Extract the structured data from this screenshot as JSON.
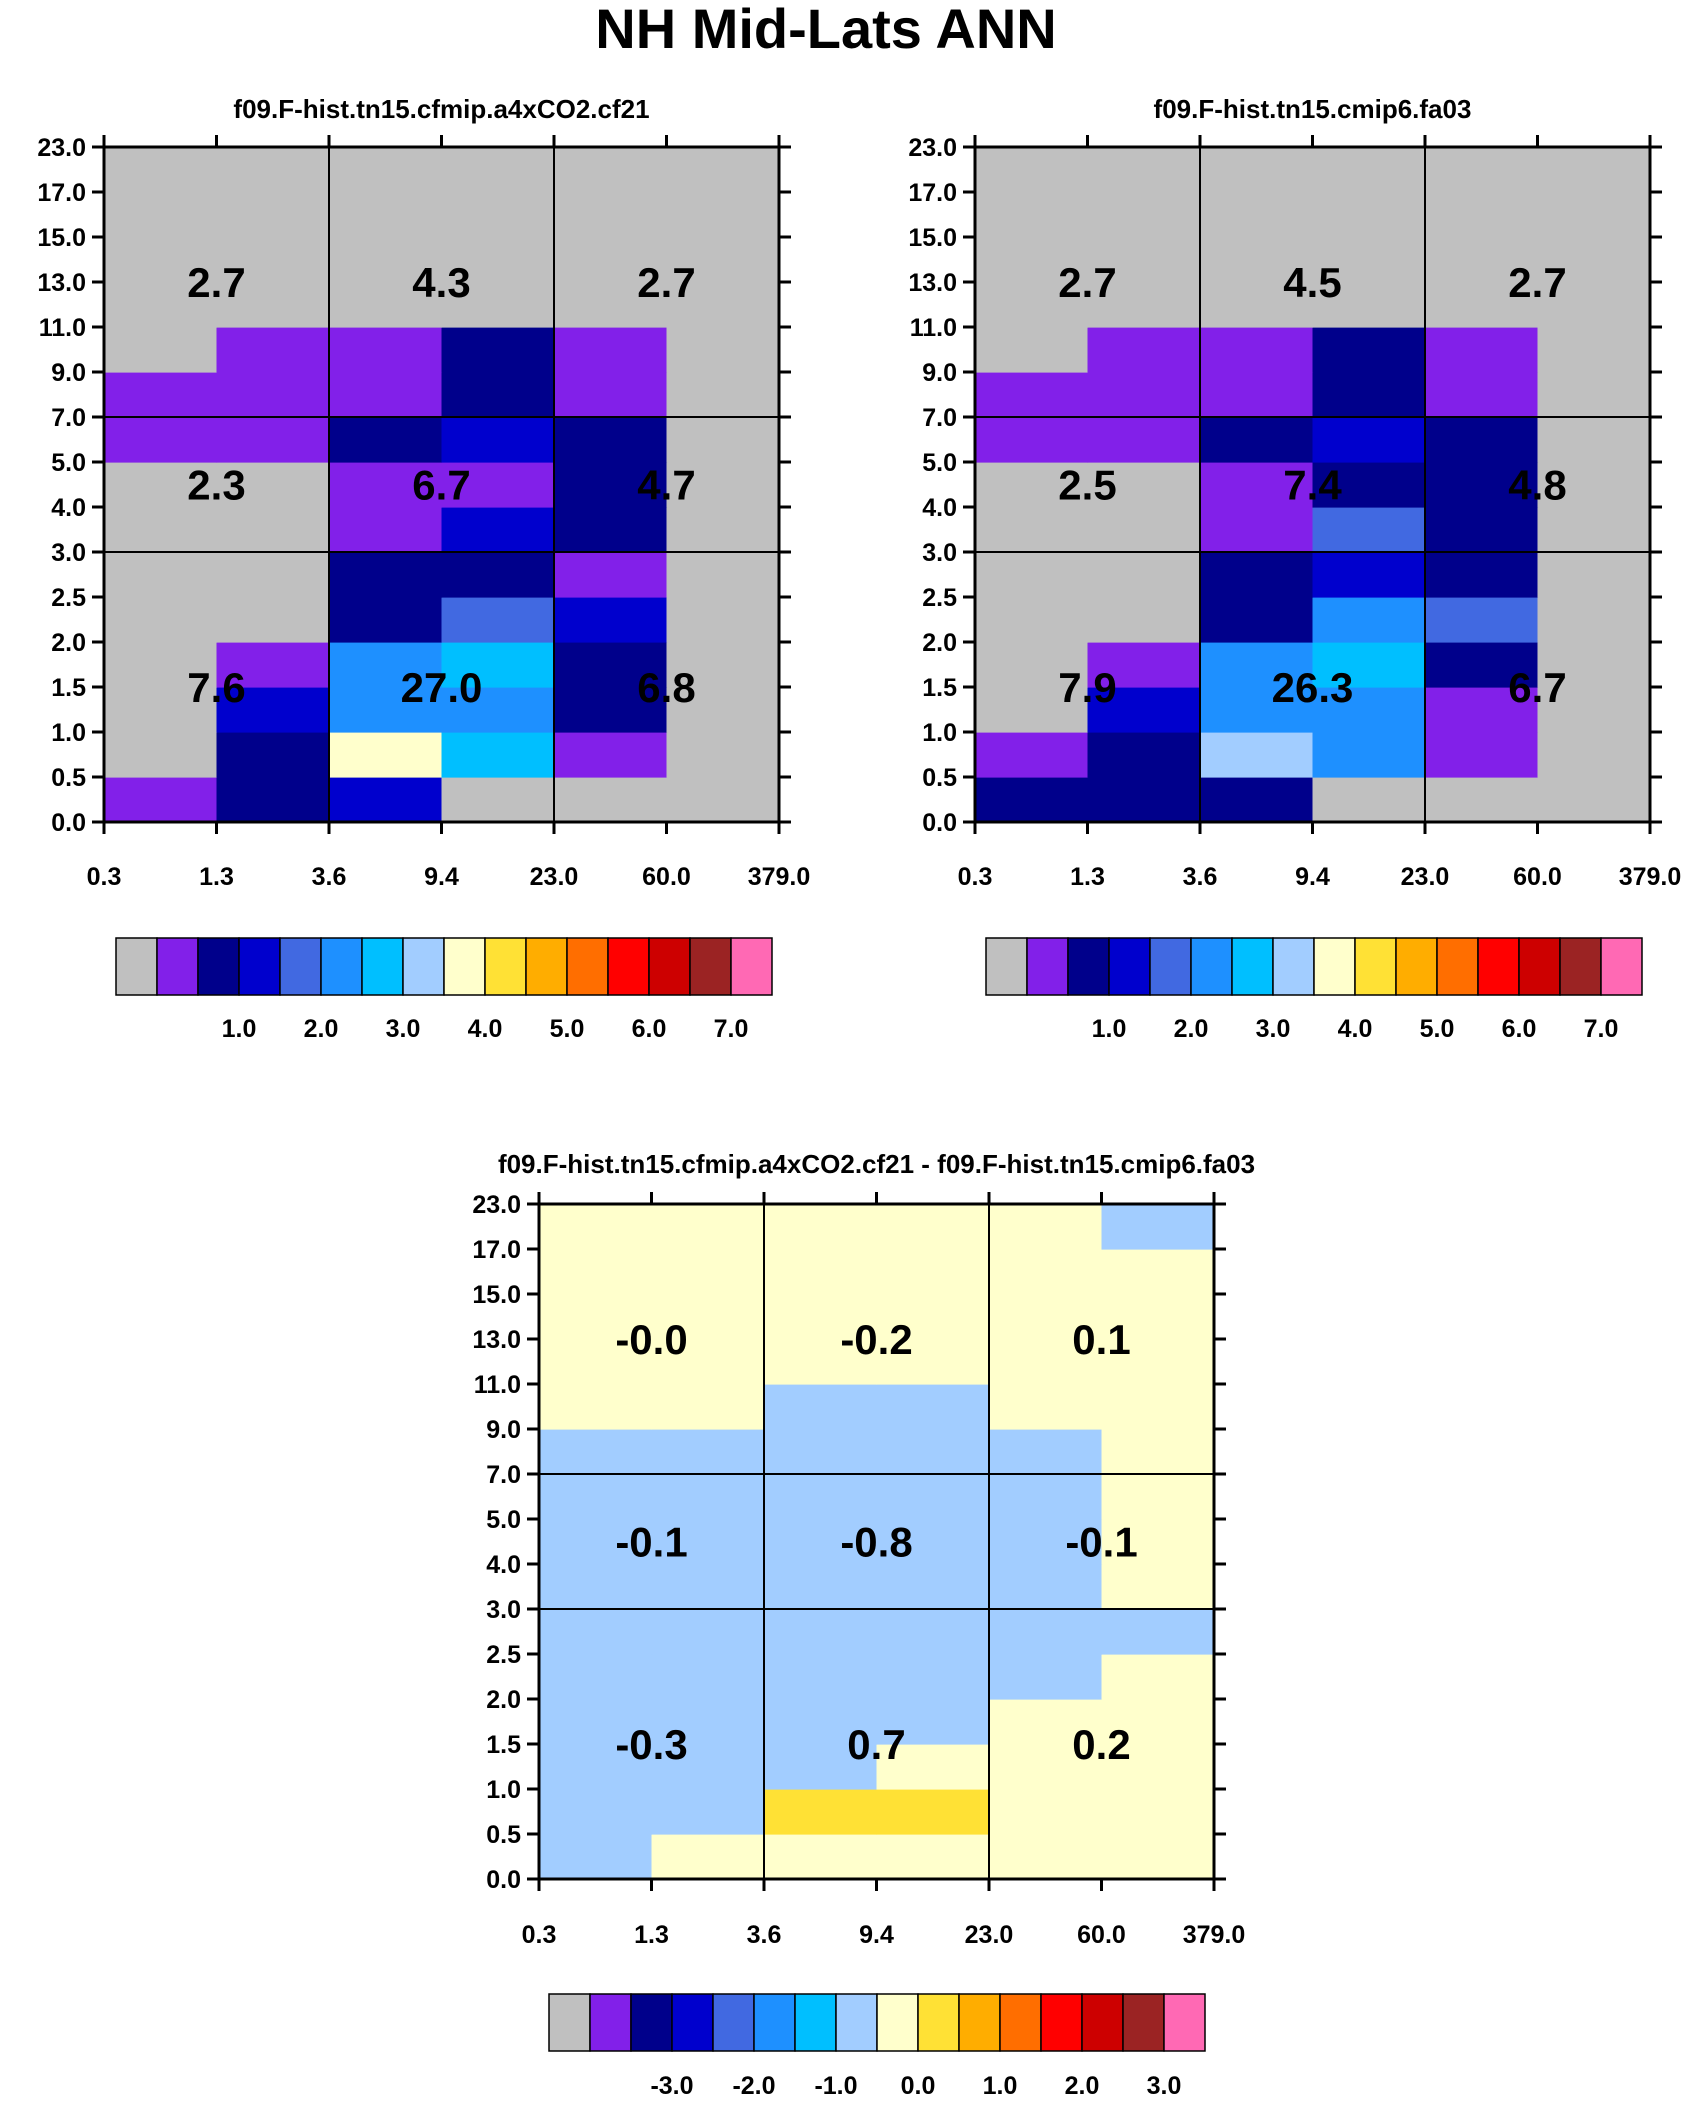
{
  "figure_title": "NH Mid-Lats ANN",
  "y_ticks": [
    "0.0",
    "0.5",
    "1.0",
    "1.5",
    "2.0",
    "2.5",
    "3.0",
    "4.0",
    "5.0",
    "7.0",
    "9.0",
    "11.0",
    "13.0",
    "15.0",
    "17.0",
    "23.0"
  ],
  "x_ticks": [
    "0.3",
    "1.3",
    "3.6",
    "9.4",
    "23.0",
    "60.0",
    "379.0"
  ],
  "palette": [
    "#c0c0c0",
    "#8220e9",
    "#00008b",
    "#0000cd",
    "#4169e1",
    "#1e90ff",
    "#00bfff",
    "#a2cdff",
    "#ffffcc",
    "#ffe135",
    "#ffad00",
    "#ff6e00",
    "#ff0000",
    "#cd0000",
    "#9b2323",
    "#ff69b4"
  ],
  "chart_data": [
    {
      "type": "heatmap",
      "title": "f09.F-hist.tn15.cfmip.a4xCO2.cf21",
      "x_edges": [
        "0.3",
        "1.3",
        "3.6",
        "9.4",
        "23.0",
        "60.0",
        "379.0"
      ],
      "y_edges": [
        "0.0",
        "0.5",
        "1.0",
        "1.5",
        "2.0",
        "2.5",
        "3.0",
        "4.0",
        "5.0",
        "7.0",
        "9.0",
        "11.0",
        "13.0",
        "15.0",
        "17.0",
        "23.0"
      ],
      "color_index_grid": [
        [
          1,
          2,
          3,
          0,
          0,
          0
        ],
        [
          0,
          2,
          8,
          6,
          1,
          0
        ],
        [
          0,
          3,
          5,
          5,
          2,
          0
        ],
        [
          0,
          1,
          5,
          6,
          2,
          0
        ],
        [
          0,
          0,
          2,
          4,
          3,
          0
        ],
        [
          0,
          0,
          2,
          2,
          1,
          0
        ],
        [
          0,
          0,
          1,
          3,
          2,
          0
        ],
        [
          0,
          0,
          1,
          1,
          2,
          0
        ],
        [
          1,
          1,
          2,
          3,
          2,
          0
        ],
        [
          1,
          1,
          1,
          2,
          1,
          0
        ],
        [
          0,
          1,
          1,
          2,
          1,
          0
        ],
        [
          0,
          0,
          0,
          0,
          0,
          0
        ],
        [
          0,
          0,
          0,
          0,
          0,
          0
        ],
        [
          0,
          0,
          0,
          0,
          0,
          0
        ],
        [
          0,
          0,
          0,
          0,
          0,
          0
        ]
      ],
      "region_sums": [
        [
          "7.6",
          "27.0",
          "6.8"
        ],
        [
          "2.3",
          "6.7",
          "4.7"
        ],
        [
          "2.7",
          "4.3",
          "2.7"
        ]
      ],
      "colorbar_labels": [
        "1.0",
        "2.0",
        "3.0",
        "4.0",
        "5.0",
        "6.0",
        "7.0"
      ]
    },
    {
      "type": "heatmap",
      "title": "f09.F-hist.tn15.cmip6.fa03",
      "x_edges": [
        "0.3",
        "1.3",
        "3.6",
        "9.4",
        "23.0",
        "60.0",
        "379.0"
      ],
      "y_edges": [
        "0.0",
        "0.5",
        "1.0",
        "1.5",
        "2.0",
        "2.5",
        "3.0",
        "4.0",
        "5.0",
        "7.0",
        "9.0",
        "11.0",
        "13.0",
        "15.0",
        "17.0",
        "23.0"
      ],
      "color_index_grid": [
        [
          2,
          2,
          2,
          0,
          0,
          0
        ],
        [
          1,
          2,
          7,
          5,
          1,
          0
        ],
        [
          0,
          3,
          5,
          5,
          1,
          0
        ],
        [
          0,
          1,
          5,
          6,
          2,
          0
        ],
        [
          0,
          0,
          2,
          5,
          4,
          0
        ],
        [
          0,
          0,
          2,
          3,
          2,
          0
        ],
        [
          0,
          0,
          1,
          4,
          2,
          0
        ],
        [
          0,
          0,
          1,
          2,
          2,
          0
        ],
        [
          1,
          1,
          2,
          3,
          2,
          0
        ],
        [
          1,
          1,
          1,
          2,
          1,
          0
        ],
        [
          0,
          1,
          1,
          2,
          1,
          0
        ],
        [
          0,
          0,
          0,
          0,
          0,
          0
        ],
        [
          0,
          0,
          0,
          0,
          0,
          0
        ],
        [
          0,
          0,
          0,
          0,
          0,
          0
        ],
        [
          0,
          0,
          0,
          0,
          0,
          0
        ]
      ],
      "region_sums": [
        [
          "7.9",
          "26.3",
          "6.7"
        ],
        [
          "2.5",
          "7.4",
          "4.8"
        ],
        [
          "2.7",
          "4.5",
          "2.7"
        ]
      ],
      "colorbar_labels": [
        "1.0",
        "2.0",
        "3.0",
        "4.0",
        "5.0",
        "6.0",
        "7.0"
      ]
    },
    {
      "type": "heatmap",
      "title": "f09.F-hist.tn15.cfmip.a4xCO2.cf21 - f09.F-hist.tn15.cmip6.fa03",
      "x_edges": [
        "0.3",
        "1.3",
        "3.6",
        "9.4",
        "23.0",
        "60.0",
        "379.0"
      ],
      "y_edges": [
        "0.0",
        "0.5",
        "1.0",
        "1.5",
        "2.0",
        "2.5",
        "3.0",
        "4.0",
        "5.0",
        "7.0",
        "9.0",
        "11.0",
        "13.0",
        "15.0",
        "17.0",
        "23.0"
      ],
      "color_index_grid": [
        [
          7,
          8,
          8,
          8,
          8,
          8
        ],
        [
          7,
          7,
          9,
          9,
          8,
          8
        ],
        [
          7,
          7,
          7,
          8,
          8,
          8
        ],
        [
          7,
          7,
          7,
          7,
          8,
          8
        ],
        [
          7,
          7,
          7,
          7,
          7,
          8
        ],
        [
          7,
          7,
          7,
          7,
          7,
          7
        ],
        [
          7,
          7,
          7,
          7,
          7,
          8
        ],
        [
          7,
          7,
          7,
          7,
          7,
          8
        ],
        [
          7,
          7,
          7,
          7,
          7,
          8
        ],
        [
          7,
          7,
          7,
          7,
          7,
          8
        ],
        [
          8,
          8,
          7,
          7,
          8,
          8
        ],
        [
          8,
          8,
          8,
          8,
          8,
          8
        ],
        [
          8,
          8,
          8,
          8,
          8,
          8
        ],
        [
          8,
          8,
          8,
          8,
          8,
          8
        ],
        [
          8,
          8,
          8,
          8,
          8,
          7
        ]
      ],
      "region_sums": [
        [
          "-0.3",
          "0.7",
          "0.2"
        ],
        [
          "-0.1",
          "-0.8",
          "-0.1"
        ],
        [
          "-0.0",
          "-0.2",
          "0.1"
        ]
      ],
      "colorbar_labels": [
        "-3.0",
        "-2.0",
        "-1.0",
        "0.0",
        "1.0",
        "2.0",
        "3.0"
      ]
    }
  ]
}
